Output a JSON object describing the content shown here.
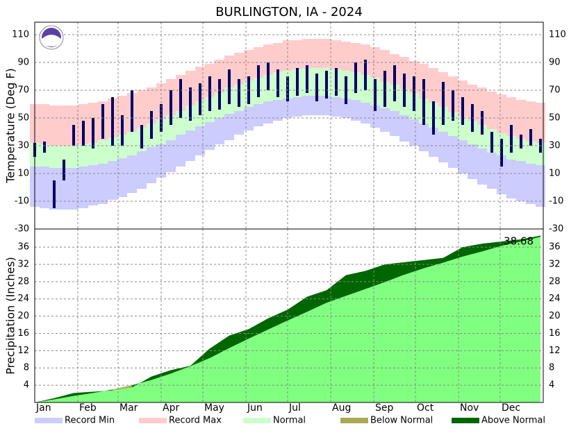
{
  "chart_data": [
    {
      "type": "range_bar",
      "title": "BURLINGTON, IA - 2024",
      "y_label": "Temperature (Deg F)",
      "x": [
        1,
        8,
        15,
        22,
        29,
        36,
        43,
        50,
        57,
        64,
        71,
        78,
        85,
        92,
        99,
        106,
        113,
        120,
        127,
        134,
        141,
        148,
        155,
        162,
        169,
        176,
        183,
        190,
        197,
        204,
        211,
        218,
        225,
        232,
        239,
        246,
        253,
        260,
        267,
        274,
        281,
        288,
        295,
        302,
        309,
        316,
        323,
        330,
        337,
        344,
        351,
        358,
        365
      ],
      "xlim": [
        1,
        367
      ],
      "xticks": [
        1,
        32,
        61,
        92,
        122,
        153,
        183,
        214,
        245,
        275,
        306,
        336
      ],
      "ylim": [
        -30,
        119
      ],
      "yticks": [
        -30,
        -10,
        10,
        30,
        50,
        70,
        90,
        110
      ],
      "grid": true,
      "series": [
        {
          "name": "Record Min",
          "color": "#ccccff",
          "values": [
            -14,
            -15,
            -16,
            -16,
            -16,
            -15,
            -13,
            -12,
            -9,
            -7,
            -4,
            -1,
            3,
            7,
            11,
            15,
            19,
            23,
            27,
            31,
            34,
            38,
            41,
            44,
            46,
            48,
            50,
            51,
            52,
            52,
            52,
            51,
            50,
            48,
            46,
            43,
            40,
            37,
            33,
            30,
            26,
            22,
            18,
            14,
            10,
            6,
            2,
            -1,
            -5,
            -8,
            -10,
            -12,
            -14
          ]
        },
        {
          "name": "Record Max",
          "color": "#ffcccc",
          "values": [
            60,
            60,
            59,
            59,
            59,
            60,
            61,
            62,
            64,
            66,
            68,
            70,
            72,
            75,
            78,
            81,
            84,
            87,
            89,
            92,
            95,
            97,
            99,
            101,
            103,
            104,
            106,
            106,
            107,
            107,
            107,
            106,
            105,
            104,
            103,
            101,
            99,
            96,
            94,
            91,
            89,
            86,
            83,
            80,
            77,
            74,
            72,
            69,
            67,
            65,
            63,
            62,
            61
          ]
        },
        {
          "name": "Normal",
          "color": "#ccffcc",
          "low": [
            15,
            15,
            14,
            14,
            14,
            15,
            16,
            17,
            19,
            21,
            23,
            26,
            29,
            31,
            34,
            38,
            41,
            44,
            47,
            50,
            53,
            55,
            58,
            60,
            62,
            63,
            64,
            65,
            66,
            66,
            66,
            65,
            64,
            63,
            61,
            59,
            57,
            55,
            52,
            49,
            46,
            43,
            40,
            37,
            34,
            31,
            28,
            25,
            23,
            20,
            19,
            17,
            16
          ],
          "high": [
            32,
            31,
            30,
            30,
            30,
            31,
            32,
            34,
            36,
            38,
            40,
            43,
            46,
            49,
            52,
            55,
            59,
            62,
            65,
            68,
            72,
            74,
            77,
            79,
            81,
            83,
            84,
            85,
            86,
            86,
            86,
            85,
            84,
            83,
            81,
            79,
            76,
            74,
            71,
            68,
            64,
            61,
            58,
            54,
            51,
            48,
            45,
            42,
            39,
            37,
            35,
            33,
            32
          ]
        },
        {
          "color": "#000066",
          "low": [
            22,
            25,
            -15,
            5,
            30,
            30,
            28,
            35,
            30,
            30,
            40,
            28,
            35,
            40,
            45,
            50,
            48,
            52,
            55,
            56,
            60,
            58,
            60,
            65,
            70,
            65,
            62,
            66,
            68,
            62,
            64,
            66,
            60,
            68,
            70,
            55,
            58,
            62,
            58,
            55,
            45,
            38,
            45,
            48,
            45,
            40,
            38,
            25,
            15,
            25,
            28,
            30,
            25
          ],
          "high": [
            32,
            33,
            5,
            20,
            45,
            48,
            50,
            60,
            65,
            52,
            70,
            45,
            55,
            60,
            70,
            78,
            72,
            75,
            80,
            78,
            85,
            78,
            80,
            88,
            90,
            85,
            80,
            86,
            88,
            82,
            84,
            86,
            80,
            90,
            92,
            78,
            84,
            88,
            82,
            80,
            78,
            62,
            76,
            70,
            65,
            60,
            55,
            40,
            35,
            45,
            38,
            42,
            35
          ]
        }
      ]
    },
    {
      "type": "cumulative_area",
      "y_label": "Precipitation (Inches)",
      "x": [
        1,
        15,
        29,
        43,
        57,
        71,
        85,
        99,
        113,
        127,
        141,
        155,
        169,
        183,
        197,
        211,
        225,
        239,
        253,
        267,
        281,
        295,
        309,
        323,
        337,
        351,
        365
      ],
      "xlim": [
        1,
        367
      ],
      "xticks": [
        {
          "value": 1,
          "label": "Jan"
        },
        {
          "value": 32,
          "label": "Feb"
        },
        {
          "value": 61,
          "label": "Mar"
        },
        {
          "value": 92,
          "label": "Apr"
        },
        {
          "value": 122,
          "label": "May"
        },
        {
          "value": 153,
          "label": "Jun"
        },
        {
          "value": 183,
          "label": "Jul"
        },
        {
          "value": 214,
          "label": "Aug"
        },
        {
          "value": 245,
          "label": "Sep"
        },
        {
          "value": 275,
          "label": "Oct"
        },
        {
          "value": 306,
          "label": "Nov"
        },
        {
          "value": 336,
          "label": "Dec"
        }
      ],
      "ylim": [
        0,
        40.2
      ],
      "yticks": [
        4,
        8,
        12,
        16,
        20,
        24,
        28,
        32,
        36
      ],
      "grid": true,
      "normal": {
        "color": "#80ff80",
        "values": [
          0,
          0.7,
          1.5,
          2.2,
          3.0,
          4.0,
          5.2,
          6.7,
          8.4,
          10.3,
          12.6,
          14.8,
          16.9,
          19.0,
          21.0,
          23.1,
          24.7,
          26.3,
          27.9,
          29.6,
          31.1,
          32.4,
          33.8,
          35.0,
          36.3,
          37.3,
          38.4
        ]
      },
      "actual": {
        "values": [
          0,
          1.0,
          2.2,
          2.5,
          2.8,
          3.5,
          6.0,
          7.5,
          8.5,
          12.5,
          15.5,
          17.0,
          19.5,
          21.5,
          24.5,
          26.0,
          29.5,
          30.5,
          32.0,
          32.5,
          33.0,
          33.5,
          36.0,
          36.8,
          37.3,
          37.8,
          38.68
        ]
      },
      "annotation": "38.68",
      "series": [
        {
          "name": "Below Normal",
          "color": "#aaaa55"
        },
        {
          "name": "Above Normal",
          "color": "#006600"
        }
      ]
    }
  ]
}
